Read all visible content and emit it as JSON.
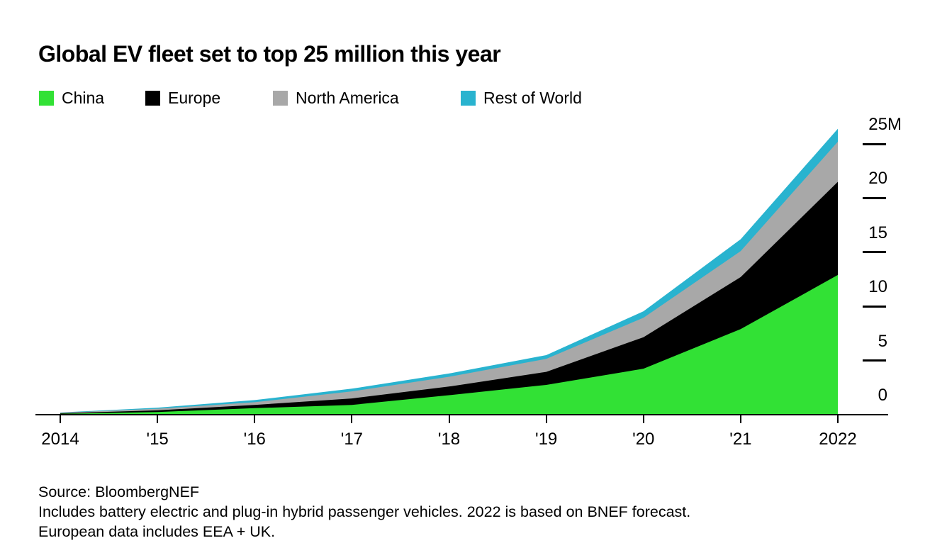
{
  "title": "Global EV fleet set to top 25 million this year",
  "chart_data": {
    "type": "area",
    "stacked": true,
    "title": "Global EV fleet set to top 25 million this year",
    "unit": "millions of vehicles",
    "x": [
      2014,
      2015,
      2016,
      2017,
      2018,
      2019,
      2020,
      2021,
      2022
    ],
    "x_tick_labels": [
      "2014",
      "'15",
      "'16",
      "'17",
      "'18",
      "'19",
      "'20",
      "'21",
      "2022"
    ],
    "series": [
      {
        "name": "China",
        "color": "#32e135",
        "values": [
          0.08,
          0.25,
          0.6,
          0.9,
          1.8,
          2.75,
          4.25,
          7.9,
          12.9
        ]
      },
      {
        "name": "Europe",
        "color": "#000000",
        "values": [
          0.05,
          0.15,
          0.3,
          0.6,
          0.8,
          1.2,
          2.9,
          4.8,
          8.6
        ]
      },
      {
        "name": "North America",
        "color": "#a8a8a8",
        "values": [
          0.05,
          0.15,
          0.25,
          0.65,
          0.9,
          1.2,
          1.8,
          2.4,
          3.7
        ]
      },
      {
        "name": "Rest of World",
        "color": "#29b3cf",
        "values": [
          0.02,
          0.1,
          0.2,
          0.25,
          0.3,
          0.35,
          0.6,
          1.1,
          1.2
        ]
      }
    ],
    "totals": [
      0.2,
      0.65,
      1.35,
      2.4,
      3.8,
      5.5,
      9.55,
      16.2,
      26.4
    ],
    "ylim": [
      0,
      25
    ],
    "y_ticks": [
      0,
      5,
      10,
      15,
      20,
      25
    ],
    "y_tick_labels": [
      "0",
      "5",
      "10",
      "15",
      "20",
      "25"
    ],
    "y_unit_suffix": "M",
    "legend_position": "top",
    "grid": false,
    "axis_label_side": "right"
  },
  "source": {
    "lines": [
      "Source: BloombergNEF",
      "Includes battery electric and plug-in hybrid passenger vehicles. 2022 is based on BNEF forecast.",
      "European data includes EEA + UK."
    ]
  }
}
